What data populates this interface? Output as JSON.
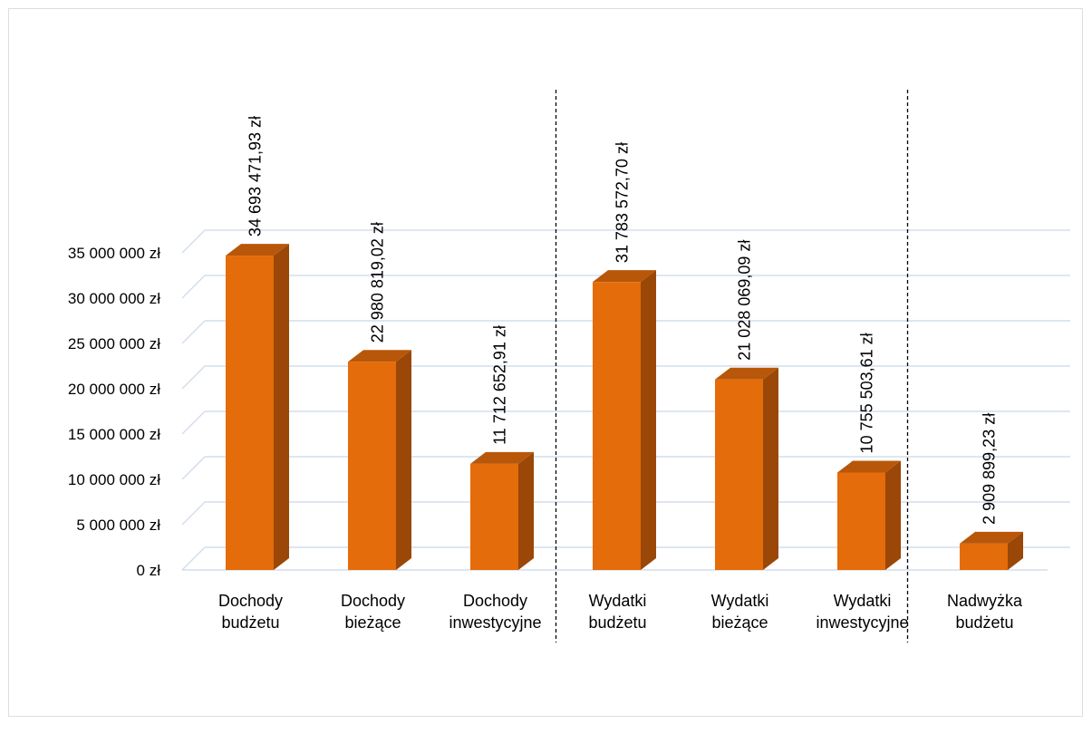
{
  "chart_data": {
    "type": "bar",
    "categories": [
      [
        "Dochody",
        "budżetu"
      ],
      [
        "Dochody",
        "bieżące"
      ],
      [
        "Dochody",
        "inwestycyjne"
      ],
      [
        "Wydatki",
        "budżetu"
      ],
      [
        "Wydatki",
        "bieżące"
      ],
      [
        "Wydatki",
        "inwestycyjne"
      ],
      [
        "Nadwyżka",
        "budżetu"
      ]
    ],
    "values": [
      34693471.93,
      22980819.02,
      11712652.91,
      31783572.7,
      21028069.09,
      10755503.61,
      2909899.23
    ],
    "value_labels": [
      "34 693 471,93 zł",
      "22 980 819,02 zł",
      "11 712 652,91 zł",
      "31 783 572,70 zł",
      "21 028 069,09 zł",
      "10 755 503,61 zł",
      "2 909 899,23 zł"
    ],
    "y_ticks": [
      "0 zł",
      "5 000 000 zł",
      "10 000 000 zł",
      "15 000 000 zł",
      "20 000 000 zł",
      "25 000 000 zł",
      "30 000 000 zł",
      "35 000 000 zł"
    ],
    "ylim": [
      0,
      35000000
    ],
    "group_separators_after": [
      3,
      6
    ],
    "grid": true,
    "legend": "none",
    "colors": {
      "bar_front": "#e46c0a",
      "bar_side": "#9a4707",
      "bar_top": "#b85709",
      "grid": "#d4deed",
      "separator": "#000000"
    }
  }
}
